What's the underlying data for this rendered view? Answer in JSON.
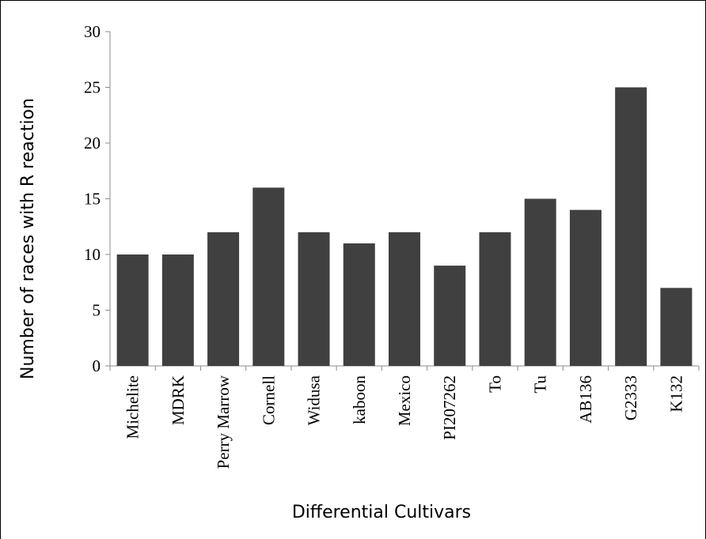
{
  "chart_data": {
    "type": "bar",
    "title": "",
    "xlabel": "Differential Cultivars",
    "ylabel": "Number of races with R reaction",
    "categories": [
      "Michelite",
      "MDRK",
      "Perry Marrow",
      "Cornell",
      "Widusa",
      "kaboon",
      "Mexico",
      "PI207262",
      "To",
      "Tu",
      "AB136",
      "G2333",
      "K132"
    ],
    "values": [
      10,
      10,
      12,
      16,
      12,
      11,
      12,
      9,
      12,
      15,
      14,
      25,
      7
    ],
    "ylim": [
      0,
      30
    ],
    "yticks": [
      "0",
      "5",
      "10",
      "15",
      "20",
      "25",
      "30"
    ],
    "grid": false,
    "bar_color": "#404040"
  }
}
